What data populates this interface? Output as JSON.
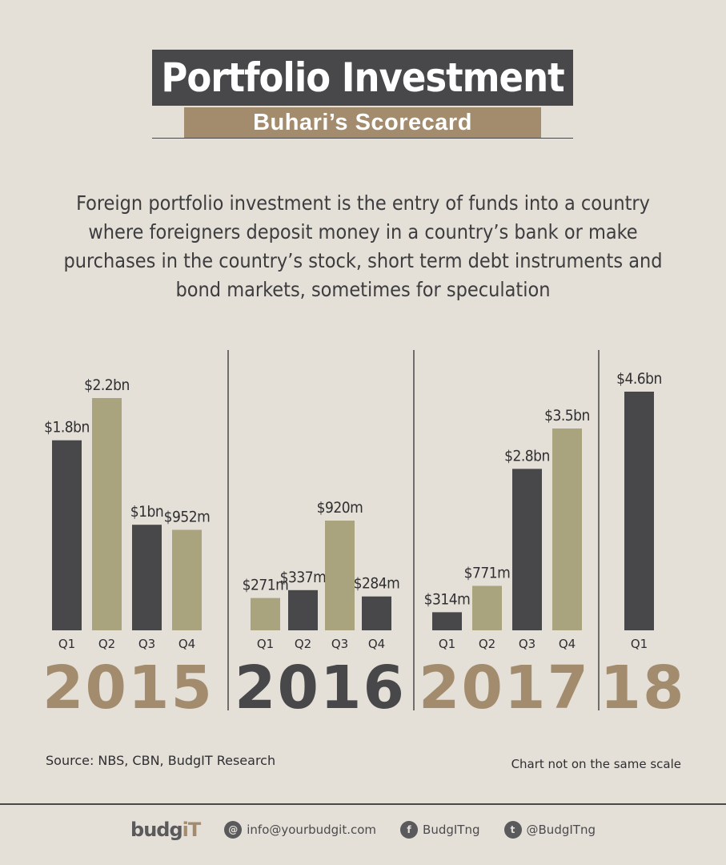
{
  "header": {
    "title": "Portfolio Investment",
    "subtitle": "Buhari’s Scorecard"
  },
  "description": "Foreign portfolio investment is the entry of funds into a country where foreigners deposit money in a country’s bank or make purchases in the country’s stock, short term debt instruments and bond markets, sometimes for speculation",
  "source": "Source: NBS, CBN, BudgIT Research",
  "note": "Chart not on the same scale",
  "footer": {
    "brand_a": "budg",
    "brand_b": "iT",
    "email": "info@yourbudgit.com",
    "facebook": "BudgITng",
    "twitter": "@BudgITng",
    "email_icon": "mail-icon",
    "facebook_icon": "facebook-icon",
    "twitter_icon": "twitter-icon"
  },
  "colors": {
    "dark": "#48484a",
    "olive": "#a9a47e",
    "tan": "#a38c6d",
    "background": "#e4dfd7"
  },
  "chart_data": {
    "type": "bar",
    "note": "Chart not on the same scale",
    "groups": [
      {
        "year_label": "2015",
        "year_color": "tan",
        "bars": [
          {
            "quarter": "Q1",
            "value_usd_m": 1800,
            "label": "$1.8bn",
            "color": "dark"
          },
          {
            "quarter": "Q2",
            "value_usd_m": 2200,
            "label": "$2.2bn",
            "color": "olive"
          },
          {
            "quarter": "Q3",
            "value_usd_m": 1000,
            "label": "$1bn",
            "color": "dark"
          },
          {
            "quarter": "Q4",
            "value_usd_m": 952,
            "label": "$952m",
            "color": "olive"
          }
        ]
      },
      {
        "year_label": "2016",
        "year_color": "dark",
        "bars": [
          {
            "quarter": "Q1",
            "value_usd_m": 271,
            "label": "$271m",
            "color": "olive"
          },
          {
            "quarter": "Q2",
            "value_usd_m": 337,
            "label": "$337m",
            "color": "dark"
          },
          {
            "quarter": "Q3",
            "value_usd_m": 920,
            "label": "$920m",
            "color": "olive"
          },
          {
            "quarter": "Q4",
            "value_usd_m": 284,
            "label": "$284m",
            "color": "dark"
          }
        ]
      },
      {
        "year_label": "2017",
        "year_color": "tan",
        "bars": [
          {
            "quarter": "Q1",
            "value_usd_m": 314,
            "label": "$314m",
            "color": "dark"
          },
          {
            "quarter": "Q2",
            "value_usd_m": 771,
            "label": "$771m",
            "color": "olive"
          },
          {
            "quarter": "Q3",
            "value_usd_m": 2800,
            "label": "$2.8bn",
            "color": "dark"
          },
          {
            "quarter": "Q4",
            "value_usd_m": 3500,
            "label": "$3.5bn",
            "color": "olive"
          }
        ]
      },
      {
        "year_label": "18",
        "year_color": "tan",
        "bars": [
          {
            "quarter": "Q1",
            "value_usd_m": 4600,
            "label": "$4.6bn",
            "color": "dark"
          }
        ]
      }
    ]
  }
}
